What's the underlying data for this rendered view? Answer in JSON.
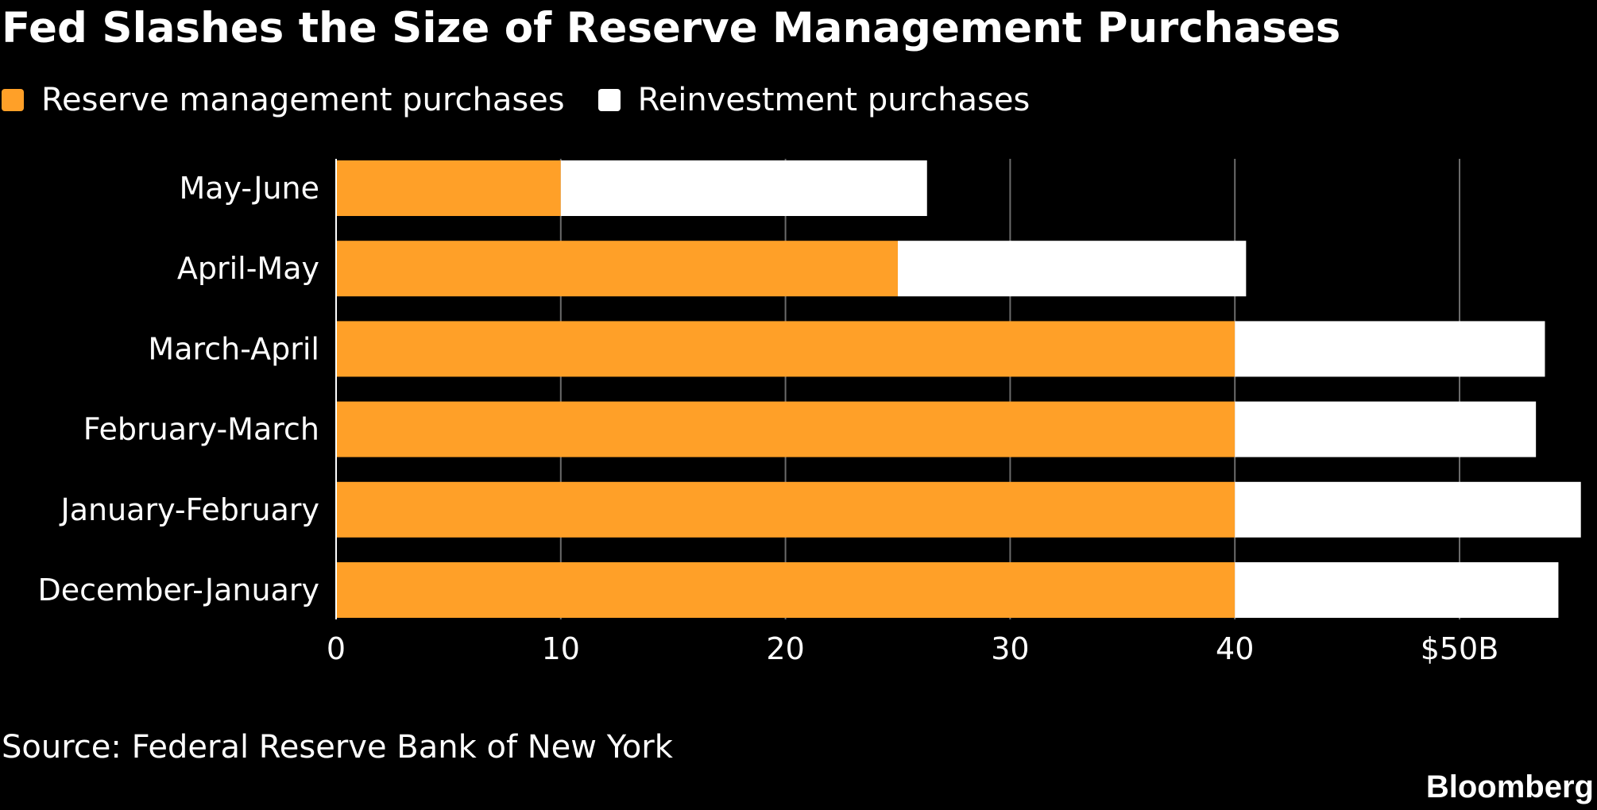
{
  "chart_data": {
    "type": "bar",
    "orientation": "horizontal",
    "stacked": true,
    "title": "Fed Slashes the Size of Reserve Management Purchases",
    "categories": [
      "May-June",
      "April-May",
      "March-April",
      "February-March",
      "January-February",
      "December-January"
    ],
    "series": [
      {
        "name": "Reserve management purchases",
        "color": "#ffa028",
        "values": [
          10,
          25,
          40,
          40,
          40,
          40
        ]
      },
      {
        "name": "Reinvestment purchases",
        "color": "#ffffff",
        "values": [
          16.3,
          15.5,
          13.8,
          13.4,
          15.4,
          14.4
        ]
      }
    ],
    "xlim": [
      0,
      55
    ],
    "xticks": [
      0,
      10,
      20,
      30,
      40,
      50
    ],
    "xtick_labels": [
      "0",
      "10",
      "20",
      "30",
      "40",
      "$50B"
    ],
    "grid": true,
    "legend_position": "top-left",
    "source": "Source: Federal Reserve Bank of New York",
    "brand": "Bloomberg"
  }
}
